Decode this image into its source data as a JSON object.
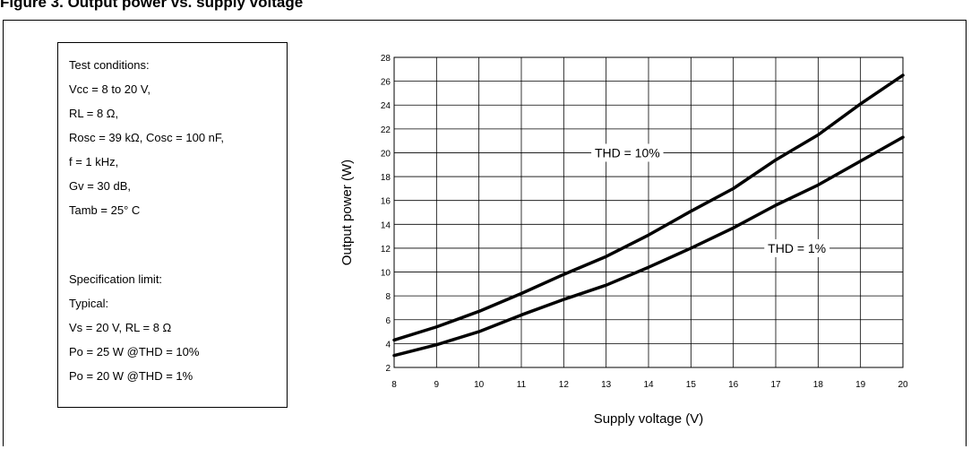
{
  "header": {
    "title": "Figure 3. Output power vs. supply voltage"
  },
  "conditions": {
    "lines": [
      "Test conditions:",
      "Vcc = 8 to 20 V,",
      "RL = 8 Ω,",
      "Rosc = 39 kΩ, Cosc = 100 nF,",
      "f = 1 kHz,",
      "Gv = 30 dB,",
      "Tamb = 25° C",
      "",
      "Specification limit:",
      "Typical:",
      "Vs = 20 V, RL = 8 Ω",
      "Po = 25 W @THD = 10%",
      "Po = 20 W @THD = 1%"
    ]
  },
  "chart_data": {
    "type": "line",
    "title": "",
    "xlabel": "Supply voltage (V)",
    "ylabel": "Output power (W)",
    "xlim": [
      8,
      20
    ],
    "ylim": [
      2,
      28
    ],
    "xticks": [
      8,
      9,
      10,
      11,
      12,
      13,
      14,
      15,
      16,
      17,
      18,
      19,
      20
    ],
    "yticks": [
      2,
      4,
      6,
      8,
      10,
      12,
      14,
      16,
      18,
      20,
      22,
      24,
      26,
      28
    ],
    "grid": true,
    "series": [
      {
        "name": "THD = 10%",
        "x": [
          8,
          9,
          10,
          11,
          12,
          13,
          14,
          15,
          16,
          17,
          18,
          19,
          20
        ],
        "y": [
          4.3,
          5.4,
          6.7,
          8.2,
          9.8,
          11.3,
          13.1,
          15.1,
          17.0,
          19.4,
          21.5,
          24.1,
          26.5
        ]
      },
      {
        "name": "THD = 1%",
        "x": [
          8,
          9,
          10,
          11,
          12,
          13,
          14,
          15,
          16,
          17,
          18,
          19,
          20
        ],
        "y": [
          3.0,
          3.9,
          5.0,
          6.4,
          7.7,
          8.9,
          10.4,
          12.0,
          13.7,
          15.6,
          17.3,
          19.3,
          21.3
        ]
      }
    ]
  }
}
